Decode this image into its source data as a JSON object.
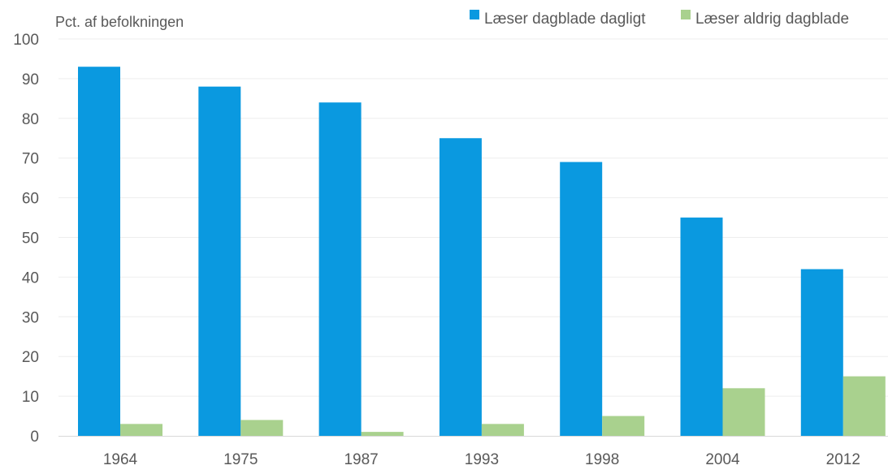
{
  "chart_data": {
    "type": "bar",
    "ylabel": "Pct. af befolkningen",
    "ylim": [
      0,
      100
    ],
    "yticks": [
      0,
      10,
      20,
      30,
      40,
      50,
      60,
      70,
      80,
      90,
      100
    ],
    "categories": [
      "1964",
      "1975",
      "1987",
      "1993",
      "1998",
      "2004",
      "2012"
    ],
    "series": [
      {
        "name": "Læser dagblade dagligt",
        "color": "#0a99e0",
        "values": [
          93,
          88,
          84,
          75,
          69,
          55,
          42
        ]
      },
      {
        "name": "Læser aldrig dagblade",
        "color": "#a9d18e",
        "values": [
          3,
          4,
          1,
          3,
          5,
          12,
          15
        ]
      }
    ],
    "grid": true,
    "legend": "top-right"
  }
}
